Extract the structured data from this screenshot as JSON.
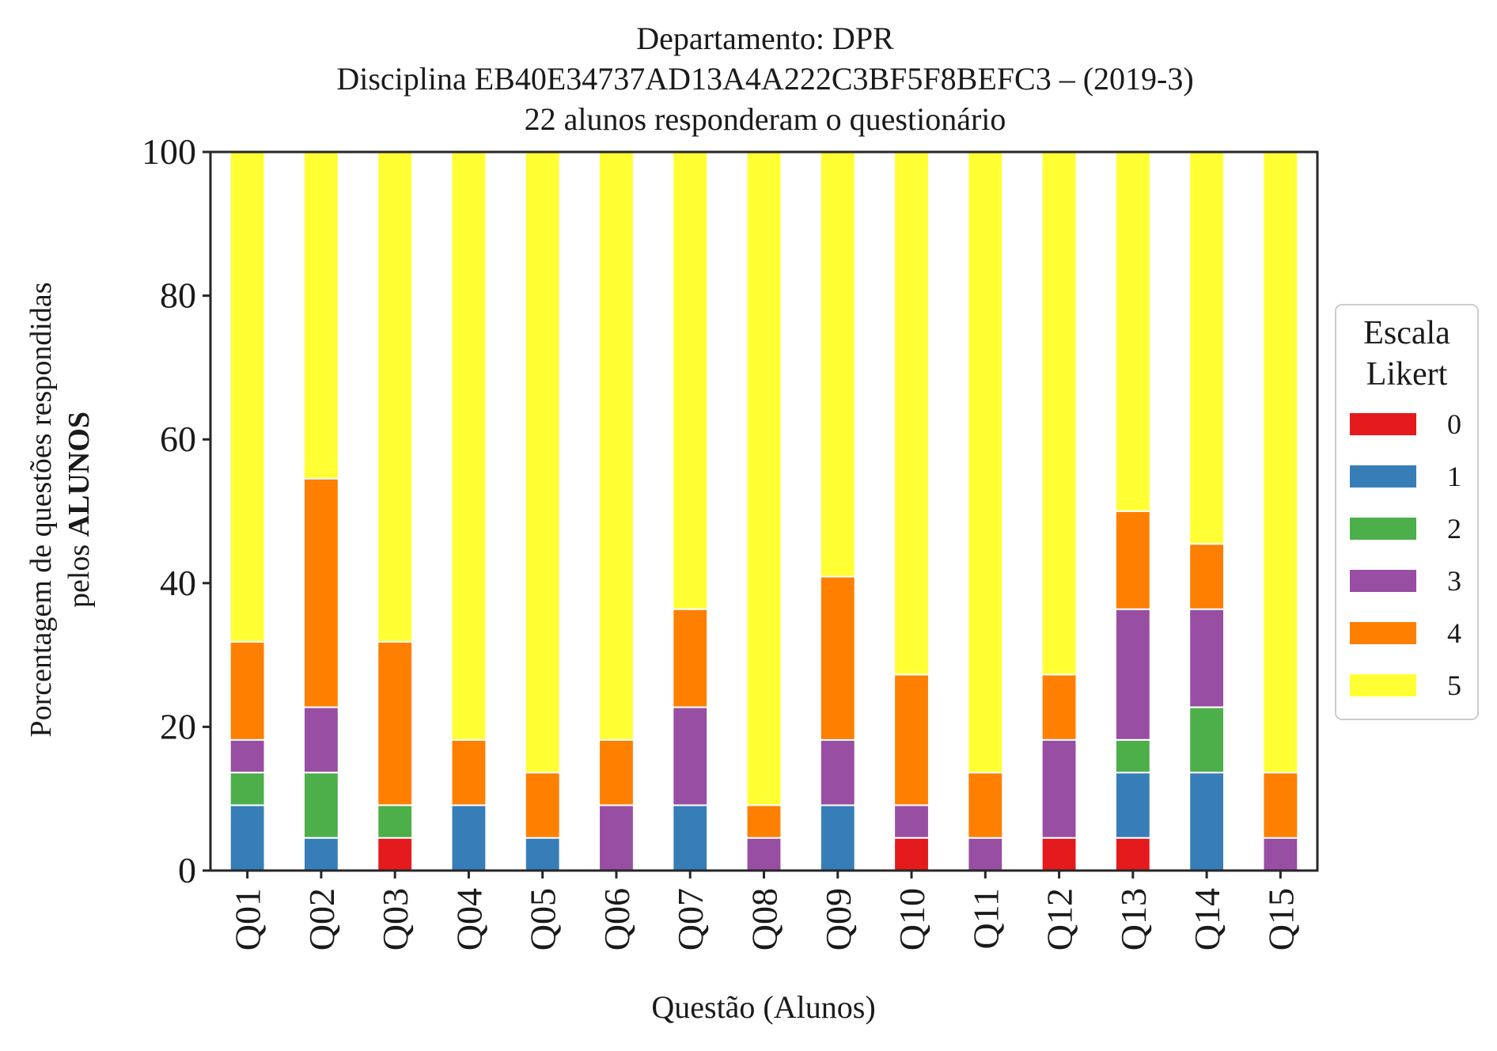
{
  "chart_data": {
    "type": "bar",
    "stacked": true,
    "title_lines": [
      "Departamento: DPR",
      "Disciplina EB40E34737AD13A4A222C3BF5F8BEFC3 – (2019-3)",
      "22 alunos responderam o questionário"
    ],
    "xlabel": "Questão (Alunos)",
    "ylabel_line1": "Porcentagem de questões respondidas",
    "ylabel_line2_prefix": "pelos ",
    "ylabel_line2_bold": "ALUNOS",
    "ylim": [
      0,
      100
    ],
    "yticks": [
      "0",
      "20",
      "40",
      "60",
      "80",
      "100"
    ],
    "grid": false,
    "legend": {
      "title_line1": "Escala",
      "title_line2": "Likert",
      "placement": "right-outside"
    },
    "categories": [
      "Q01",
      "Q02",
      "Q03",
      "Q04",
      "Q05",
      "Q06",
      "Q07",
      "Q08",
      "Q09",
      "Q10",
      "Q11",
      "Q12",
      "Q13",
      "Q14",
      "Q15"
    ],
    "series": [
      {
        "name": "0",
        "color": "#e41a1c",
        "values": [
          0,
          0,
          4.55,
          0,
          0,
          0,
          0,
          0,
          0,
          4.55,
          0,
          4.55,
          4.55,
          0,
          0
        ]
      },
      {
        "name": "1",
        "color": "#377eb8",
        "values": [
          9.09,
          4.55,
          0,
          9.09,
          4.55,
          0,
          9.09,
          0,
          9.09,
          0,
          0,
          0,
          9.09,
          13.64,
          0
        ]
      },
      {
        "name": "2",
        "color": "#4daf4a",
        "values": [
          4.55,
          9.09,
          4.55,
          0,
          0,
          0,
          0,
          0,
          0,
          0,
          0,
          0,
          4.55,
          9.09,
          0
        ]
      },
      {
        "name": "3",
        "color": "#984ea3",
        "values": [
          4.55,
          9.09,
          0,
          0,
          0,
          9.09,
          13.64,
          4.55,
          9.09,
          4.55,
          4.55,
          13.64,
          18.18,
          13.64,
          4.55
        ]
      },
      {
        "name": "4",
        "color": "#ff7f00",
        "values": [
          13.64,
          31.82,
          22.73,
          9.09,
          9.09,
          9.09,
          13.64,
          4.55,
          22.73,
          18.18,
          9.09,
          9.09,
          13.64,
          9.09,
          9.09
        ]
      },
      {
        "name": "5",
        "color": "#ffff33",
        "values": [
          68.18,
          45.45,
          68.18,
          81.82,
          86.36,
          81.82,
          63.64,
          90.91,
          59.09,
          72.73,
          86.36,
          72.73,
          50.0,
          54.55,
          86.36
        ]
      }
    ]
  }
}
